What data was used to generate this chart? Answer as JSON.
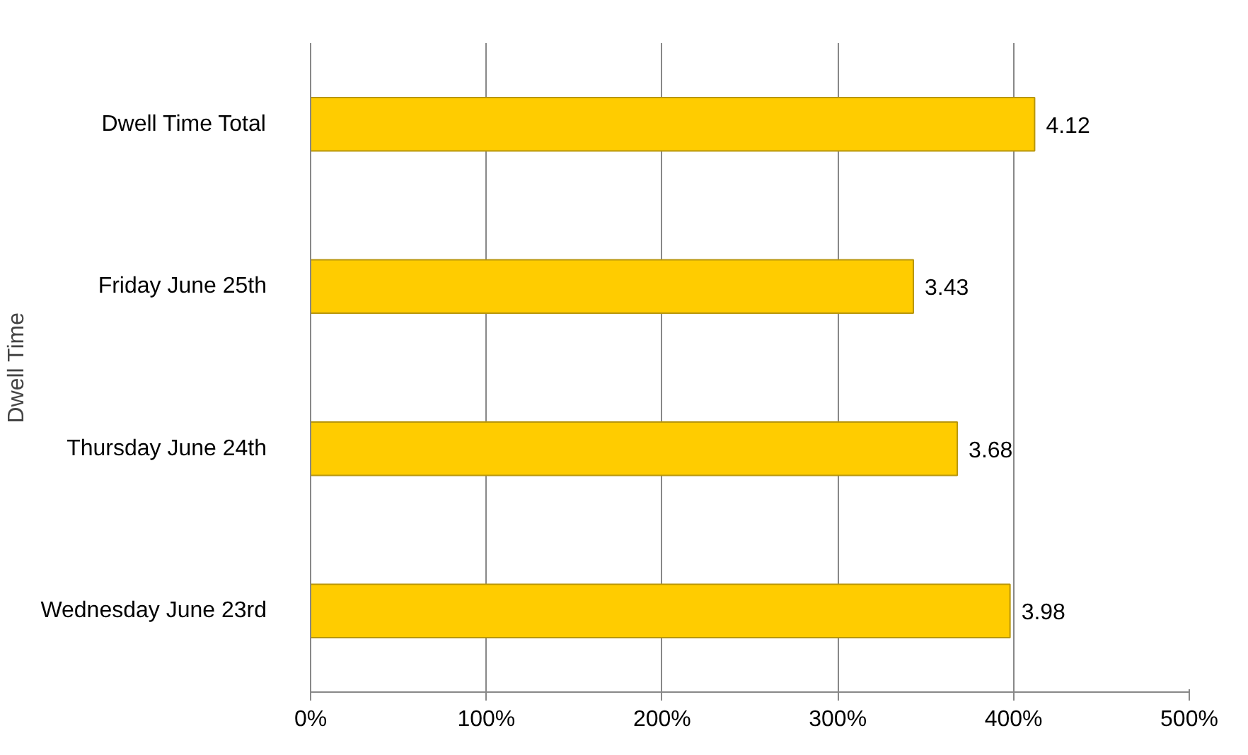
{
  "chart_data": {
    "type": "bar",
    "orientation": "horizontal",
    "ylabel": "Dwell Time",
    "categories": [
      "Dwell Time Total",
      "Friday June 25th",
      "Thursday June 24th",
      "Wednesday June 23rd"
    ],
    "values": [
      4.12,
      3.43,
      3.68,
      3.98
    ],
    "color": "#ffcc00",
    "xlim": [
      0,
      5
    ],
    "xticks": [
      {
        "value": 0,
        "label": "0%"
      },
      {
        "value": 1,
        "label": "100%"
      },
      {
        "value": 2,
        "label": "200%"
      },
      {
        "value": 3,
        "label": "300%"
      },
      {
        "value": 4,
        "label": "400%"
      },
      {
        "value": 5,
        "label": "500%"
      }
    ],
    "data_labels": true,
    "grid": "x"
  }
}
